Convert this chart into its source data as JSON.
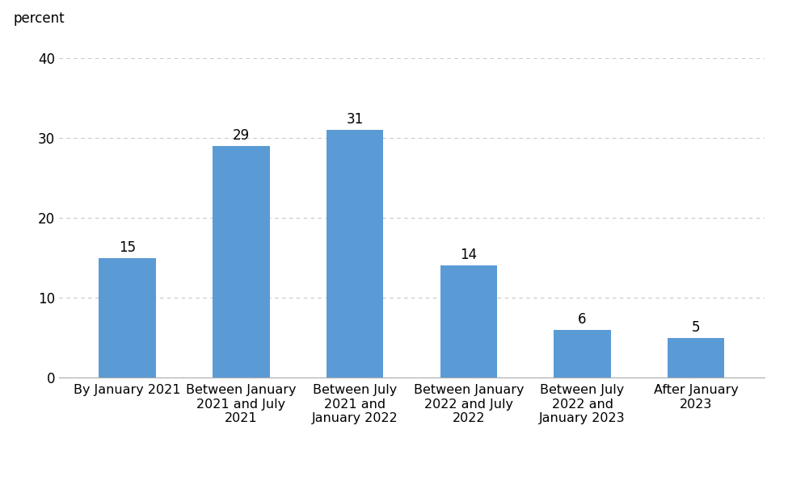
{
  "categories": [
    "By January 2021",
    "Between January\n2021 and July\n2021",
    "Between July\n2021 and\nJanuary 2022",
    "Between January\n2022 and July\n2022",
    "Between July\n2022 and\nJanuary 2023",
    "After January\n2023"
  ],
  "values": [
    15,
    29,
    31,
    14,
    6,
    5
  ],
  "bar_color": "#5b9bd5",
  "ylabel": "percent",
  "ylim": [
    0,
    40
  ],
  "yticks": [
    0,
    10,
    20,
    30,
    40
  ],
  "value_labels": [
    "15",
    "29",
    "31",
    "14",
    "6",
    "5"
  ],
  "background_color": "#ffffff",
  "grid_color": "#c8c8c8",
  "label_fontsize": 11.5,
  "tick_fontsize": 12,
  "ylabel_fontsize": 12,
  "value_label_fontsize": 12
}
